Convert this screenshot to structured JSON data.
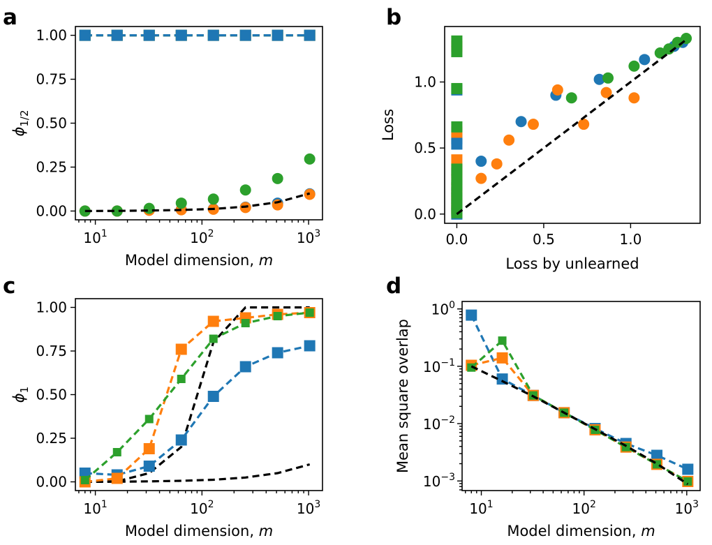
{
  "colors": {
    "blue": "#1f77b4",
    "orange": "#ff7f0e",
    "green": "#2ca02c",
    "black": "#000000"
  },
  "chart_data": [
    {
      "panel": "a",
      "type": "line",
      "xscale": "log",
      "xlim": [
        6.5,
        1350
      ],
      "xticks": [
        10,
        100,
        1000
      ],
      "xtick_labels": [
        [
          "10",
          "1"
        ],
        [
          "10",
          "2"
        ],
        [
          "10",
          "3"
        ]
      ],
      "ylim": [
        -0.05,
        1.05
      ],
      "yticks": [
        0,
        0.25,
        0.5,
        0.75,
        1.0
      ],
      "ytick_labels": [
        "0.00",
        "0.25",
        "0.50",
        "0.75",
        "1.00"
      ],
      "xlabel": "Model dimension, ",
      "xlabel_var": "m",
      "ylabel": "ϕ",
      "ylabel_sub": "1/2",
      "grid": false,
      "series": [
        {
          "color": "orange",
          "marker": "square",
          "dashed": true,
          "x": [
            8,
            16,
            32,
            64,
            128,
            256,
            512,
            1024
          ],
          "values": [
            1,
            1,
            1,
            1,
            1,
            1,
            1,
            1
          ]
        },
        {
          "color": "green",
          "marker": "square",
          "dashed": true,
          "x": [
            8,
            16,
            32,
            64,
            128,
            256,
            512,
            1024
          ],
          "values": [
            1,
            1,
            1,
            1,
            1,
            1,
            1,
            1
          ]
        },
        {
          "color": "blue",
          "marker": "square",
          "dashed": true,
          "x": [
            8,
            16,
            32,
            64,
            128,
            256,
            512,
            1024
          ],
          "values": [
            1,
            1,
            1,
            1,
            1,
            1,
            1,
            1
          ]
        },
        {
          "color": "blue",
          "marker": "circle",
          "dashed": false,
          "x": [
            8,
            16,
            32,
            64,
            128,
            256,
            512,
            1024
          ],
          "values": [
            0,
            0,
            0.005,
            0.008,
            0.012,
            0.022,
            0.045,
            0.098
          ]
        },
        {
          "color": "orange",
          "marker": "circle",
          "dashed": false,
          "x": [
            8,
            16,
            32,
            64,
            128,
            256,
            512,
            1024
          ],
          "values": [
            0,
            0,
            0.004,
            0.007,
            0.01,
            0.02,
            0.035,
            0.095
          ]
        },
        {
          "color": "green",
          "marker": "circle",
          "dashed": false,
          "x": [
            8,
            16,
            32,
            64,
            128,
            256,
            512,
            1024
          ],
          "values": [
            0,
            0,
            0.015,
            0.045,
            0.068,
            0.12,
            0.185,
            0.296
          ]
        },
        {
          "color": "black",
          "marker": "none",
          "dashed": true,
          "x": [
            8,
            16,
            32,
            64,
            128,
            256,
            512,
            1024
          ],
          "values": [
            0.0,
            0.001,
            0.003,
            0.006,
            0.012,
            0.025,
            0.05,
            0.1
          ]
        }
      ]
    },
    {
      "panel": "b",
      "type": "scatter",
      "xscale": "linear",
      "xlim": [
        -0.07,
        1.4
      ],
      "xticks": [
        0,
        0.5,
        1.0
      ],
      "xtick_labels": [
        "0.0",
        "0.5",
        "1.0"
      ],
      "ylim": [
        -0.07,
        1.42
      ],
      "yticks": [
        0,
        0.5,
        1.0
      ],
      "ytick_labels": [
        "0.0",
        "0.5",
        "1.0"
      ],
      "xlabel": "Loss by unlearned",
      "xlabel_var": "",
      "ylabel": "Loss",
      "ylabel_sub": "",
      "grid": false,
      "series": [
        {
          "color": "blue",
          "marker": "square",
          "dashed": false,
          "x": [
            0,
            0,
            0,
            0,
            0,
            0,
            0,
            0,
            0,
            0
          ],
          "values": [
            0.0,
            0.03,
            0.07,
            0.12,
            0.16,
            0.2,
            0.31,
            0.53,
            0.57,
            0.94
          ]
        },
        {
          "color": "orange",
          "marker": "square",
          "dashed": false,
          "x": [
            0,
            0,
            0,
            0,
            0,
            0,
            0,
            0,
            0,
            0
          ],
          "values": [
            0.02,
            0.05,
            0.1,
            0.14,
            0.19,
            0.26,
            0.33,
            0.41,
            0.62,
            1.27
          ]
        },
        {
          "color": "green",
          "marker": "square",
          "dashed": false,
          "x": [
            0,
            0,
            0,
            0,
            0,
            0,
            0,
            0,
            0,
            0,
            0,
            0
          ],
          "values": [
            0.01,
            0.04,
            0.08,
            0.12,
            0.17,
            0.22,
            0.26,
            0.34,
            0.66,
            0.95,
            1.23,
            1.31
          ]
        },
        {
          "color": "blue",
          "marker": "circle",
          "dashed": false,
          "x": [
            0.14,
            0.37,
            0.57,
            0.82,
            1.08,
            1.25,
            1.3
          ],
          "values": [
            0.4,
            0.7,
            0.9,
            1.02,
            1.17,
            1.27,
            1.3
          ]
        },
        {
          "color": "orange",
          "marker": "circle",
          "dashed": false,
          "x": [
            0.14,
            0.23,
            0.3,
            0.44,
            0.58,
            0.73,
            0.86,
            1.02
          ],
          "values": [
            0.27,
            0.38,
            0.56,
            0.68,
            0.94,
            0.68,
            0.92,
            0.88
          ]
        },
        {
          "color": "green",
          "marker": "circle",
          "dashed": false,
          "x": [
            0.66,
            0.87,
            1.02,
            1.17,
            1.22,
            1.27,
            1.32
          ],
          "values": [
            0.88,
            1.03,
            1.12,
            1.22,
            1.25,
            1.3,
            1.33
          ]
        },
        {
          "color": "black",
          "marker": "none",
          "dashed": true,
          "x": [
            0,
            1.32
          ],
          "values": [
            0,
            1.32
          ]
        }
      ]
    },
    {
      "panel": "c",
      "type": "line",
      "xscale": "log",
      "xlim": [
        6.5,
        1350
      ],
      "xticks": [
        10,
        100,
        1000
      ],
      "xtick_labels": [
        [
          "10",
          "1"
        ],
        [
          "10",
          "2"
        ],
        [
          "10",
          "3"
        ]
      ],
      "ylim": [
        -0.05,
        1.05
      ],
      "yticks": [
        0,
        0.25,
        0.5,
        0.75,
        1.0
      ],
      "ytick_labels": [
        "0.00",
        "0.25",
        "0.50",
        "0.75",
        "1.00"
      ],
      "xlabel": "Model dimension, ",
      "xlabel_var": "m",
      "ylabel": "ϕ",
      "ylabel_sub": "1",
      "grid": false,
      "series": [
        {
          "color": "black",
          "marker": "none",
          "dashed": true,
          "x": [
            8,
            16,
            32,
            64,
            128,
            256,
            512,
            1024
          ],
          "values": [
            0.003,
            0.003,
            0.05,
            0.2,
            0.8,
            1.0,
            1.0,
            1.0
          ]
        },
        {
          "color": "black",
          "marker": "none",
          "dashed": true,
          "x": [
            8,
            16,
            32,
            64,
            128,
            256,
            512,
            1024
          ],
          "values": [
            0.0,
            0.001,
            0.003,
            0.006,
            0.012,
            0.025,
            0.05,
            0.1
          ]
        },
        {
          "color": "blue",
          "marker": "square",
          "dashed": true,
          "x": [
            8,
            16,
            32,
            64,
            128,
            256,
            512,
            1024
          ],
          "values": [
            0.05,
            0.04,
            0.09,
            0.24,
            0.49,
            0.66,
            0.74,
            0.78
          ]
        },
        {
          "color": "orange",
          "marker": "square",
          "dashed": true,
          "x": [
            8,
            16,
            32,
            64,
            128,
            256,
            512,
            1024
          ],
          "values": [
            0.0,
            0.02,
            0.19,
            0.76,
            0.92,
            0.94,
            0.96,
            0.97
          ]
        },
        {
          "color": "green",
          "marker": "square-small",
          "dashed": true,
          "x": [
            8,
            16,
            32,
            64,
            128,
            256,
            512,
            1024
          ],
          "values": [
            0.01,
            0.17,
            0.36,
            0.59,
            0.82,
            0.91,
            0.95,
            0.97
          ]
        }
      ]
    },
    {
      "panel": "d",
      "type": "line",
      "xscale": "log",
      "xlim": [
        6.5,
        1350
      ],
      "xticks": [
        10,
        100,
        1000
      ],
      "xtick_labels": [
        [
          "10",
          "1"
        ],
        [
          "10",
          "2"
        ],
        [
          "10",
          "3"
        ]
      ],
      "yscale": "log",
      "ylim": [
        0.00068,
        1.35
      ],
      "yticks": [
        0.001,
        0.01,
        0.1,
        1
      ],
      "ytick_labels": [
        [
          "10",
          "−3"
        ],
        [
          "10",
          "−2"
        ],
        [
          "10",
          "−1"
        ],
        [
          "10",
          "0"
        ]
      ],
      "xlabel": "Model dimension, ",
      "xlabel_var": "m",
      "ylabel": "Mean square overlap",
      "ylabel_sub": "",
      "grid": false,
      "series": [
        {
          "color": "blue",
          "marker": "square",
          "dashed": true,
          "x": [
            8,
            16,
            32,
            64,
            128,
            256,
            512,
            1024
          ],
          "values": [
            0.78,
            0.06,
            0.031,
            0.0155,
            0.0082,
            0.0045,
            0.0028,
            0.0016
          ]
        },
        {
          "color": "orange",
          "marker": "square",
          "dashed": true,
          "x": [
            8,
            16,
            32,
            64,
            128,
            256,
            512,
            1024
          ],
          "values": [
            0.104,
            0.14,
            0.031,
            0.0155,
            0.0078,
            0.0039,
            0.00195,
            0.00098
          ]
        },
        {
          "color": "green",
          "marker": "square-small",
          "dashed": true,
          "x": [
            8,
            16,
            32,
            64,
            128,
            256,
            512,
            1024
          ],
          "values": [
            0.095,
            0.28,
            0.031,
            0.0155,
            0.0078,
            0.0039,
            0.00195,
            0.00098
          ]
        },
        {
          "color": "black",
          "marker": "none",
          "dashed": true,
          "x": [
            8,
            16,
            32,
            64,
            128,
            256,
            512,
            1024
          ],
          "values": [
            0.1,
            0.055,
            0.03,
            0.0155,
            0.008,
            0.0041,
            0.002,
            0.00088
          ]
        }
      ]
    }
  ]
}
